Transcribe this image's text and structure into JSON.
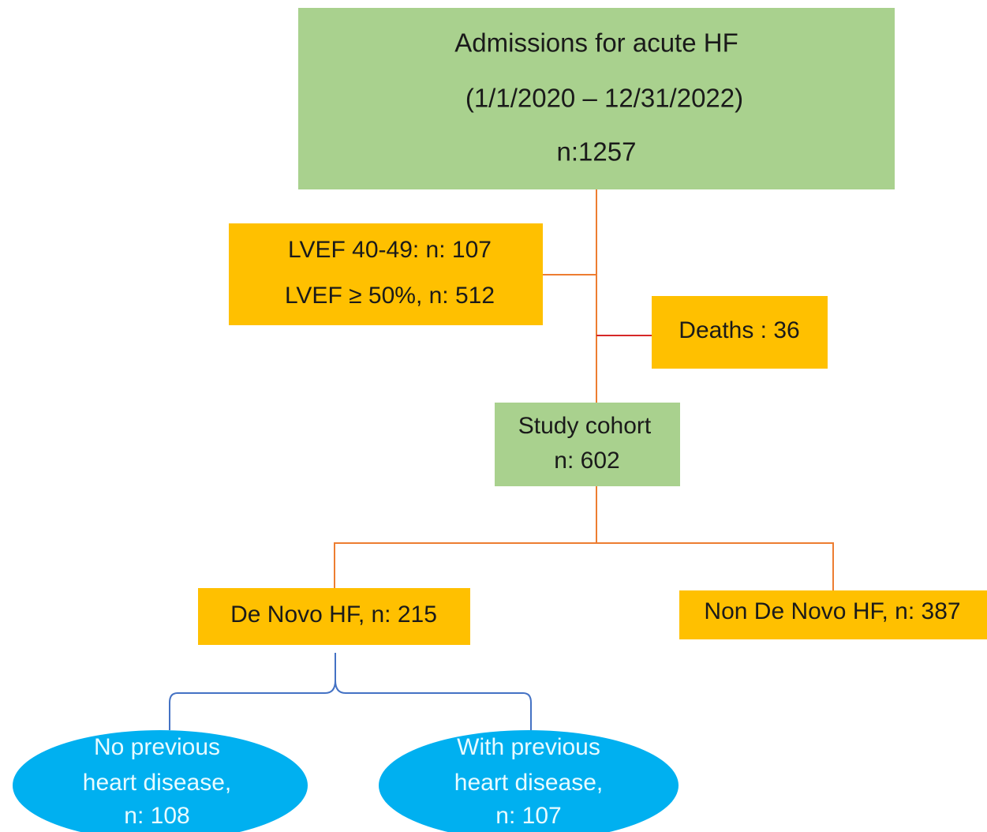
{
  "nodes": [
    {
      "lines": [
        "Admissions for acute HF",
        "(1/1/2020 – 12/31/2022)",
        "n:1257"
      ]
    },
    {
      "lines": [
        "LVEF 40-49: n: 107",
        "LVEF ≥ 50%, n: 512"
      ]
    },
    {
      "lines": [
        "Deaths : 36"
      ]
    },
    {
      "lines": [
        "Study cohort",
        "n: 602"
      ]
    },
    {
      "lines": [
        "De Novo HF, n: 215"
      ]
    },
    {
      "lines": [
        "Non De Novo HF, n: 387"
      ]
    },
    {
      "lines": [
        "No previous",
        "heart disease,",
        "n: 108"
      ]
    },
    {
      "lines": [
        "With previous",
        "heart disease,",
        "n: 107"
      ]
    }
  ]
}
